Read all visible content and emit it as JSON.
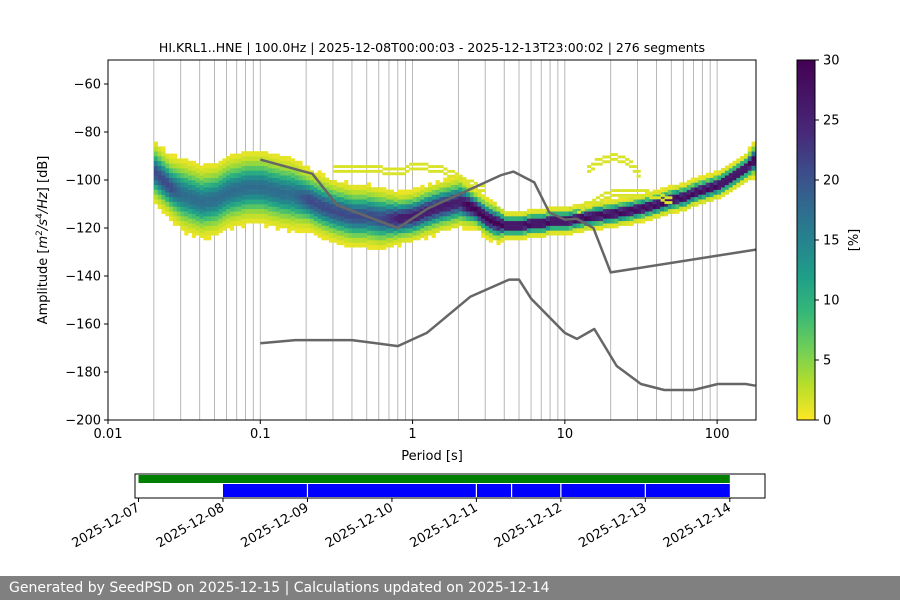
{
  "chart_data": [
    {
      "type": "heatmap",
      "title": "HI.KRL1..HNE | 100.0Hz | 2025-12-08T00:00:03 - 2025-12-13T23:00:02 | 276 segments",
      "xlabel": "Period [s]",
      "ylabel_prefix": "Amplitude [",
      "ylabel_m": "m",
      "ylabel_mid": "/",
      "ylabel_s": "s",
      "ylabel_hz": "/Hz",
      "ylabel_suffix": "] [dB]",
      "ylabel_exp2": "2",
      "ylabel_exp4": "4",
      "x_scale": "log",
      "xlim": [
        0.01,
        180
      ],
      "ylim": [
        -200,
        -50
      ],
      "x_ticks": [
        0.01,
        0.1,
        1,
        10,
        100
      ],
      "x_tick_labels": [
        "0.01",
        "0.1",
        "1",
        "10",
        "100"
      ],
      "y_ticks": [
        -200,
        -180,
        -160,
        -140,
        -120,
        -100,
        -80,
        -60
      ],
      "y_tick_labels": [
        "−200",
        "−180",
        "−160",
        "−140",
        "−120",
        "−100",
        "−80",
        "−60"
      ],
      "grid": "vertical",
      "colorbar": {
        "label": "[%]",
        "range": [
          0,
          30
        ],
        "ticks": [
          0,
          5,
          10,
          15,
          20,
          25,
          30
        ],
        "tick_labels": [
          "0",
          "5",
          "10",
          "15",
          "20",
          "25",
          "30"
        ],
        "colormap": "viridis_r"
      },
      "mode_curve": {
        "periods": [
          0.02,
          0.025,
          0.03,
          0.04,
          0.05,
          0.06,
          0.08,
          0.1,
          0.13,
          0.16,
          0.2,
          0.25,
          0.3,
          0.4,
          0.5,
          0.6,
          0.8,
          1.0,
          1.2,
          1.5,
          2.0,
          2.5,
          3.0,
          3.5,
          4.0,
          5.0,
          6.0,
          7.0,
          8.0,
          10,
          12,
          15,
          20,
          25,
          30,
          40,
          50,
          60,
          70,
          80,
          100,
          120,
          150,
          180
        ],
        "values": [
          -98,
          -104,
          -107,
          -110,
          -109,
          -106,
          -104,
          -104,
          -106,
          -107,
          -109,
          -112,
          -114,
          -116,
          -116,
          -117,
          -117,
          -116,
          -114,
          -112,
          -110,
          -113,
          -117,
          -119,
          -120,
          -120,
          -119,
          -119,
          -118,
          -118,
          -117,
          -116,
          -115,
          -114,
          -113,
          -111,
          -109,
          -108,
          -106,
          -105,
          -103,
          -100,
          -96,
          -91
        ]
      },
      "spread_db": [
        5,
        5,
        6,
        6,
        6,
        6,
        6,
        6,
        6,
        6,
        5,
        5,
        5,
        5,
        5,
        5,
        4,
        4,
        4,
        4,
        4,
        3,
        3,
        3,
        2,
        2,
        2,
        2,
        2,
        2,
        2,
        2,
        2,
        2,
        2,
        2,
        2,
        2,
        2,
        2,
        2,
        2,
        2,
        3
      ],
      "reference_curves": [
        {
          "periods": [
            0.1,
            0.22,
            0.32,
            0.8,
            1.25,
            3.8,
            4.6,
            6.3,
            7.9,
            10,
            12,
            15.4,
            20,
            180
          ],
          "values": [
            -91.5,
            -97.4,
            -110.5,
            -120,
            -112,
            -98,
            -96.5,
            -101,
            -113.5,
            -116.5,
            -116.2,
            -120,
            -138.5,
            -129
          ]
        },
        {
          "periods": [
            0.1,
            0.17,
            0.4,
            0.8,
            1.24,
            2.4,
            4.3,
            5.0,
            6.0,
            10,
            12,
            15.6,
            21.9,
            31.6,
            45,
            70,
            101,
            154,
            178
          ],
          "values": [
            -168,
            -166.7,
            -166.7,
            -169.2,
            -163.7,
            -148.6,
            -141.5,
            -141.5,
            -149.4,
            -163.7,
            -166.2,
            -162.1,
            -177.5,
            -185,
            -187.5,
            -187.5,
            -185,
            -185,
            -185.7
          ]
        }
      ],
      "secondary_bands": [
        {
          "periods": [
            0.3,
            0.5,
            0.8,
            1.0,
            1.5,
            2.0,
            2.5,
            3.0
          ],
          "values": [
            -96,
            -96,
            -97,
            -95,
            -96,
            -100,
            -103,
            -105
          ]
        },
        {
          "periods": [
            14,
            16,
            20,
            25,
            30
          ],
          "values": [
            -96,
            -93,
            -91,
            -93,
            -98
          ]
        },
        {
          "periods": [
            12,
            15,
            20,
            30,
            40,
            50
          ],
          "values": [
            -113,
            -110,
            -106,
            -106,
            -107,
            -110
          ]
        }
      ]
    },
    {
      "type": "timeline",
      "date_range": [
        "2025-12-06T23:00",
        "2025-12-14T10:00"
      ],
      "tick_labels": [
        "2025-12-07",
        "2025-12-08",
        "2025-12-09",
        "2025-12-10",
        "2025-12-11",
        "2025-12-12",
        "2025-12-13",
        "2025-12-14"
      ],
      "green_span": [
        "2025-12-07T00:00",
        "2025-12-14T00:00"
      ],
      "blue_span": [
        "2025-12-08T00:00",
        "2025-12-14T00:00"
      ],
      "blue_gaps": [
        "2025-12-09T00:00",
        "2025-12-11T00:00",
        "2025-12-11T10:00",
        "2025-12-12T00:00",
        "2025-12-13T00:00"
      ],
      "colors": {
        "green": "#008000",
        "blue": "#0000ff"
      }
    }
  ],
  "footer": {
    "text": "Generated by SeedPSD on 2025-12-15 | Calculations updated on 2025-12-14"
  },
  "colors": {
    "reference_curve": "#666666",
    "grid": "#b0b0b0",
    "footer_bg": "#808080"
  }
}
